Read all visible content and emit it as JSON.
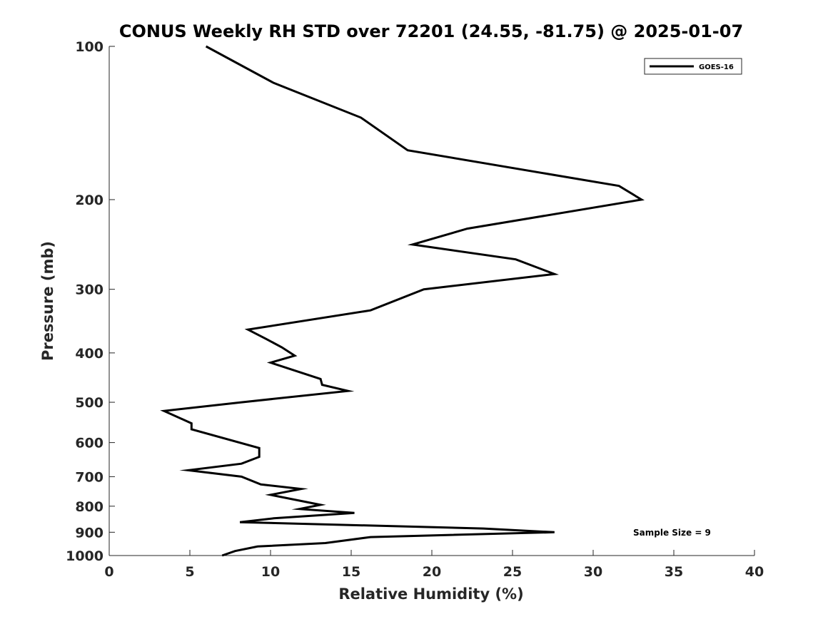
{
  "chart_data": {
    "type": "line",
    "title": "CONUS Weekly RH STD over 72201 (24.55, -81.75) @ 2025-01-07",
    "xlabel": "Relative Humidity (%)",
    "ylabel": "Pressure (mb)",
    "xlim": [
      0,
      40
    ],
    "ylim": [
      100,
      1000
    ],
    "y_scale": "log",
    "y_reversed": true,
    "x_ticks": [
      "0",
      "5",
      "10",
      "15",
      "20",
      "25",
      "30",
      "35",
      "40"
    ],
    "y_ticks": [
      "100",
      "200",
      "300",
      "400",
      "500",
      "600",
      "700",
      "800",
      "900",
      "1000"
    ],
    "grid": false,
    "legend_position": "top-right",
    "annotation": "Sample Size = 9",
    "series": [
      {
        "name": "GOES-16",
        "color": "#000000",
        "x": [
          7.0,
          7.8,
          9.2,
          13.4,
          16.2,
          27.6,
          23.2,
          8.1,
          10.2,
          15.2,
          11.8,
          13.1,
          10.0,
          11.9,
          9.4,
          8.2,
          4.9,
          8.2,
          9.3,
          9.3,
          5.1,
          5.1,
          3.4,
          8.2,
          14.8,
          13.2,
          13.1,
          10.0,
          11.5,
          10.7,
          9.7,
          8.6,
          16.2,
          19.5,
          27.6,
          25.2,
          18.8,
          22.2,
          33.0,
          31.6,
          18.5,
          15.6,
          10.2,
          6.0
        ],
        "y": [
          1000,
          980,
          960,
          945,
          920,
          900,
          885,
          860,
          845,
          825,
          810,
          795,
          760,
          740,
          725,
          700,
          680,
          660,
          640,
          615,
          565,
          550,
          520,
          500,
          475,
          462,
          450,
          418,
          405,
          390,
          375,
          360,
          330,
          300,
          280,
          262,
          245,
          228,
          200,
          188,
          160,
          138,
          118,
          100
        ]
      }
    ]
  }
}
